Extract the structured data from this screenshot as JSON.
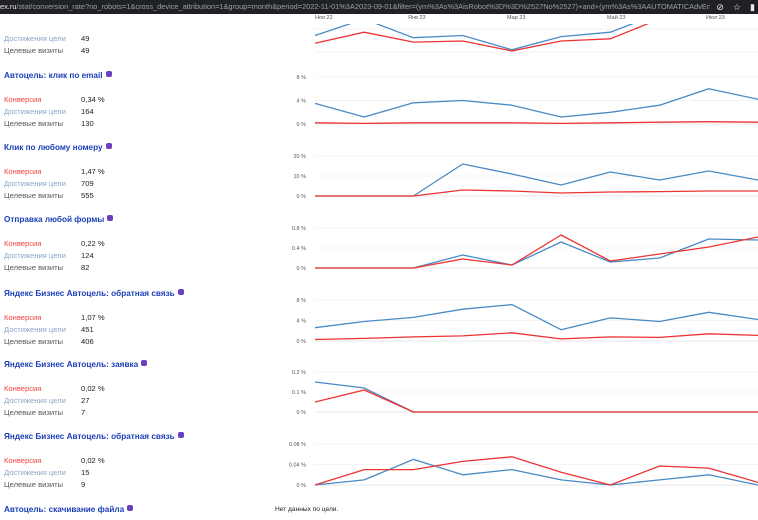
{
  "browser": {
    "url_host": "ex.ru",
    "url_path": "/stat/conversion_rate?no_robots=1&cross_device_attribution=1&group=month&period=2022-11-01%3A2023-09-01&filter=(ym%3As%3AisRobot%3D%3D%2527No%2527)+and+(ym%3As%3AAUTOMATICAdvEng...",
    "icons": [
      "eye-off-icon",
      "star-icon",
      "sidebar-icon"
    ]
  },
  "xaxis": [
    "Ноя 22",
    "Янв 23",
    "Мар 23",
    "Май 23",
    "Июл 23"
  ],
  "metric_labels": {
    "conversion": "Конверсия",
    "goals": "Достижения цели",
    "visits": "Целевые визиты"
  },
  "top_partial": {
    "goals": "49",
    "visits": "49"
  },
  "goals": [
    {
      "title": "Автоцель: клик по email",
      "conversion": "0,34 %",
      "goals": "164",
      "visits": "130"
    },
    {
      "title": "Клик по любому номеру",
      "conversion": "1,47 %",
      "goals": "709",
      "visits": "555"
    },
    {
      "title": "Отправка любой формы",
      "conversion": "0,22 %",
      "goals": "124",
      "visits": "82"
    },
    {
      "title": "Яндекс Бизнес Автоцель: обратная связь",
      "conversion": "1,07 %",
      "goals": "451",
      "visits": "406"
    },
    {
      "title": "Яндекс Бизнес Автоцель: заявка",
      "conversion": "0,02 %",
      "goals": "27",
      "visits": "7"
    },
    {
      "title": "Яндекс Бизнес Автоцель: обратная связь",
      "conversion": "0,02 %",
      "goals": "15",
      "visits": "9"
    }
  ],
  "last_goal": {
    "title": "Автоцель: скачивание файла",
    "no_data": "Нет данных по цели."
  },
  "colors": {
    "blue": "#4a8ac4",
    "red": "#e33",
    "title": "#1a3fb8",
    "badge": "#6b3fc0"
  },
  "chart_data": [
    {
      "type": "line",
      "title": "Автоцель: клик по email",
      "yticks": [
        "0 %",
        "4 %",
        "8 %"
      ],
      "ylim": [
        0,
        8
      ],
      "series": [
        {
          "color": "blue",
          "values": [
            3.5,
            1.2,
            3.6,
            4.0,
            3.2,
            1.2,
            2.0,
            3.2,
            6.0,
            4.2
          ]
        },
        {
          "color": "red",
          "values": [
            0.2,
            0.1,
            0.2,
            0.2,
            0.2,
            0.1,
            0.2,
            0.3,
            0.4,
            0.3
          ]
        }
      ]
    },
    {
      "type": "line",
      "title": "Клик по любому номеру",
      "yticks": [
        "0 %",
        "10 %",
        "20 %"
      ],
      "ylim": [
        0,
        20
      ],
      "series": [
        {
          "color": "blue",
          "values": [
            0,
            0,
            0,
            16,
            11,
            5.5,
            12,
            8,
            12.5,
            8
          ]
        },
        {
          "color": "red",
          "values": [
            0,
            0,
            0,
            3,
            2.5,
            1.5,
            2,
            2.2,
            2.5,
            2.5
          ]
        }
      ]
    },
    {
      "type": "line",
      "title": "Отправка любой формы",
      "yticks": [
        "0 %",
        "0.4 %",
        "0.8 %"
      ],
      "ylim": [
        0,
        0.8
      ],
      "series": [
        {
          "color": "blue",
          "values": [
            0,
            0,
            0,
            0.26,
            0.06,
            0.52,
            0.12,
            0.2,
            0.58,
            0.56
          ]
        },
        {
          "color": "red",
          "values": [
            0,
            0,
            0,
            0.18,
            0.06,
            0.66,
            0.14,
            0.28,
            0.42,
            0.62
          ]
        }
      ]
    },
    {
      "type": "line",
      "title": "Яндекс Бизнес Автоцель: обратная связь",
      "yticks": [
        "0 %",
        "4 %",
        "8 %"
      ],
      "ylim": [
        0,
        8
      ],
      "series": [
        {
          "color": "blue",
          "values": [
            2.6,
            3.8,
            4.6,
            6.2,
            7.1,
            2.2,
            4.5,
            3.8,
            5.6,
            4.2
          ]
        },
        {
          "color": "red",
          "values": [
            0.3,
            0.5,
            0.8,
            1.0,
            1.6,
            0.4,
            0.8,
            0.7,
            1.4,
            1.1
          ]
        }
      ]
    },
    {
      "type": "line",
      "title": "Яндекс Бизнес Автоцель: заявка",
      "yticks": [
        "0 %",
        "0.1 %",
        "0.2 %"
      ],
      "ylim": [
        0,
        0.2
      ],
      "series": [
        {
          "color": "blue",
          "values": [
            0.15,
            0.12,
            0,
            0,
            0,
            0,
            0,
            0,
            0,
            0
          ]
        },
        {
          "color": "red",
          "values": [
            0.05,
            0.11,
            0,
            0,
            0,
            0,
            0,
            0,
            0,
            0
          ]
        }
      ]
    },
    {
      "type": "line",
      "title": "Яндекс Бизнес Автоцель: обратная связь",
      "yticks": [
        "0 %",
        "0.04 %",
        "0.08 %"
      ],
      "ylim": [
        0,
        0.08
      ],
      "series": [
        {
          "color": "blue",
          "values": [
            0,
            0.01,
            0.05,
            0.02,
            0.03,
            0.01,
            0,
            0.01,
            0.02,
            0
          ]
        },
        {
          "color": "red",
          "values": [
            0,
            0.03,
            0.03,
            0.046,
            0.055,
            0.025,
            0,
            0.037,
            0.033,
            0.005
          ]
        }
      ]
    }
  ],
  "top_chart": {
    "series": [
      {
        "color": "blue",
        "values": [
          1.5,
          3.0,
          1.3,
          1.5,
          0.2,
          1.4,
          1.8,
          3.5,
          3.5,
          3.5
        ]
      },
      {
        "color": "red",
        "values": [
          0.8,
          1.8,
          0.9,
          1.0,
          0.1,
          1.0,
          1.2,
          3.0,
          4.5,
          4.5
        ]
      }
    ]
  }
}
